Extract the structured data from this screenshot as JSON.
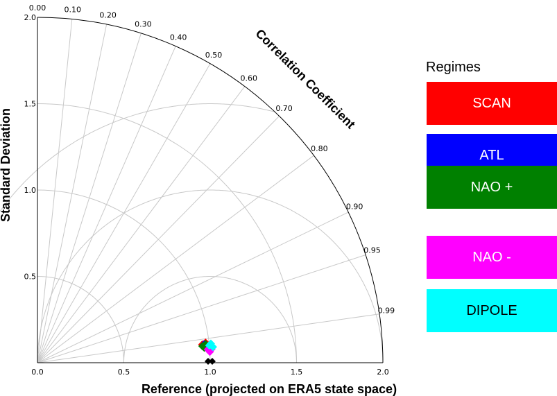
{
  "chart_data": {
    "type": "scatter",
    "diagram": "taylor",
    "xlabel": "Reference (projected on ERA5 state space)",
    "ylabel": "Standard Deviation",
    "arc_label": "Correlation Coefficient",
    "std_range": [
      0,
      2.0
    ],
    "std_ticks": [
      "0.0",
      "0.5",
      "1.0",
      "1.5",
      "2.0"
    ],
    "correlation_ticks": [
      "0.00",
      "0.10",
      "0.20",
      "0.30",
      "0.40",
      "0.50",
      "0.60",
      "0.70",
      "0.80",
      "0.90",
      "0.95",
      "0.99"
    ],
    "correlation_values": [
      0.0,
      0.1,
      0.2,
      0.3,
      0.4,
      0.5,
      0.6,
      0.7,
      0.8,
      0.9,
      0.95,
      0.99
    ],
    "rms_contours": [
      0.5,
      1.0,
      1.5
    ],
    "grid": true,
    "reference": {
      "std": 1.0,
      "correlation": 1.0,
      "color": "#000000"
    },
    "series": [
      {
        "name": "SCAN",
        "color": "#ff0000",
        "points": [
          {
            "std": 0.96,
            "correlation": 0.994
          },
          {
            "std": 0.98,
            "correlation": 0.993
          },
          {
            "std": 0.99,
            "correlation": 0.995
          }
        ]
      },
      {
        "name": "ATL",
        "color": "#0000ff",
        "points": [
          {
            "std": 0.97,
            "correlation": 0.994
          },
          {
            "std": 0.99,
            "correlation": 0.996
          },
          {
            "std": 1.01,
            "correlation": 0.995
          }
        ]
      },
      {
        "name": "NAO +",
        "color": "#008000",
        "points": [
          {
            "std": 0.96,
            "correlation": 0.995
          },
          {
            "std": 0.98,
            "correlation": 0.994
          },
          {
            "std": 0.97,
            "correlation": 0.996
          }
        ]
      },
      {
        "name": "NAO -",
        "color": "#ff00ff",
        "points": [
          {
            "std": 0.99,
            "correlation": 0.997
          },
          {
            "std": 1.0,
            "correlation": 0.998
          },
          {
            "std": 1.01,
            "correlation": 0.997
          }
        ]
      },
      {
        "name": "DIPOLE",
        "color": "#00ffff",
        "points": [
          {
            "std": 1.0,
            "correlation": 0.995
          },
          {
            "std": 1.02,
            "correlation": 0.996
          },
          {
            "std": 1.01,
            "correlation": 0.994
          }
        ]
      }
    ]
  },
  "legend": {
    "title": "Regimes",
    "items": [
      {
        "label": "SCAN",
        "color": "#ff0000",
        "text_color": "#ffffff"
      },
      {
        "label": "ATL",
        "color": "#0000ff",
        "text_color": "#ffffff"
      },
      {
        "label": "NAO +",
        "color": "#008000",
        "text_color": "#ffffff"
      },
      {
        "label": "NAO -",
        "color": "#ff00ff",
        "text_color": "#ffffff"
      },
      {
        "label": "DIPOLE",
        "color": "#00ffff",
        "text_color": "#000000"
      }
    ]
  }
}
